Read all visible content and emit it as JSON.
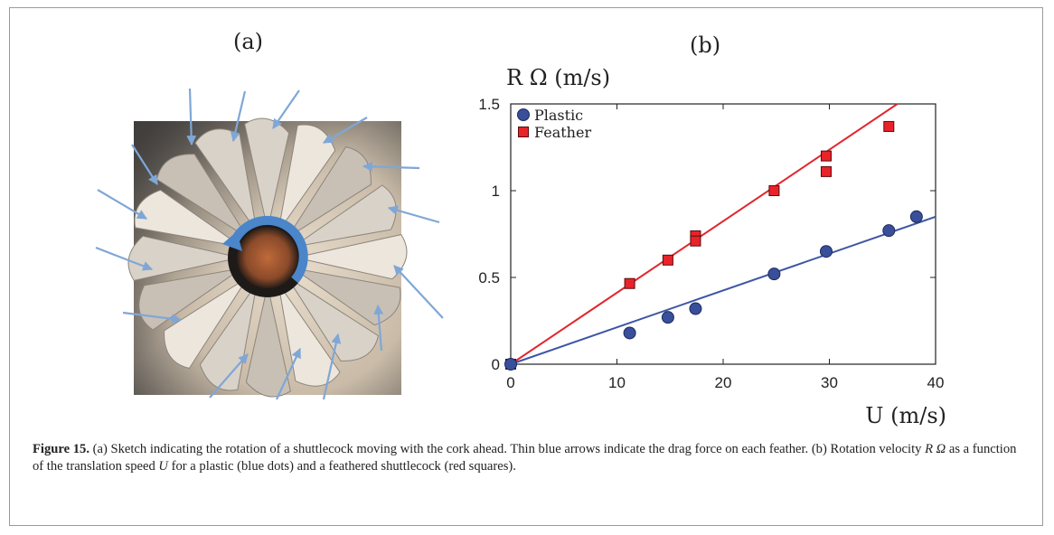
{
  "figure": {
    "panel_a_label": "(a)",
    "panel_b_label": "(b)",
    "caption": {
      "label": "Figure 15.",
      "part1": " (a) Sketch indicating the rotation of a shuttlecock moving with the cork ahead. Thin blue arrows indicate the drag force on each feather. (b) Rotation velocity ",
      "symbol_r_omega": "R Ω",
      "part2": " as a function of the translation speed ",
      "symbol_u": "U",
      "part3": " for a plastic (blue dots) and a feathered shuttlecock (red squares)."
    }
  },
  "colors": {
    "plastic": "#3a4f9a",
    "plastic_line": "#3d55a5",
    "feather": "#e8242a",
    "feather_line": "#e2252b",
    "arrow": "#7fa7d6",
    "rotation_arrow": "#4a86c9"
  },
  "chart_data": {
    "type": "scatter",
    "ylabel": "R Ω (m/s)",
    "xlabel": "U (m/s)",
    "xlim": [
      0,
      40
    ],
    "ylim": [
      0,
      1.5
    ],
    "xticks": [
      0,
      10,
      20,
      30,
      40
    ],
    "xtick_labels": [
      "0",
      "10",
      "20",
      "30",
      "40"
    ],
    "yticks": [
      0,
      0.5,
      1,
      1.5
    ],
    "ytick_labels": [
      "0",
      "0.5",
      "1",
      "1.5"
    ],
    "grid": false,
    "legend_position": "top-left",
    "series": [
      {
        "name": "Plastic",
        "marker": "circle",
        "points": [
          [
            0,
            0
          ],
          [
            11.2,
            0.18
          ],
          [
            14.8,
            0.27
          ],
          [
            17.4,
            0.32
          ],
          [
            24.8,
            0.52
          ],
          [
            29.7,
            0.65
          ],
          [
            35.6,
            0.77
          ],
          [
            38.2,
            0.85
          ]
        ],
        "fit": [
          [
            0,
            0
          ],
          [
            40,
            0.85
          ]
        ]
      },
      {
        "name": "Feather",
        "marker": "square",
        "points": [
          [
            0,
            0
          ],
          [
            11.2,
            0.465
          ],
          [
            14.8,
            0.6
          ],
          [
            17.4,
            0.74
          ],
          [
            17.4,
            0.71
          ],
          [
            24.8,
            1.0
          ],
          [
            29.7,
            1.2
          ],
          [
            29.7,
            1.11
          ],
          [
            35.6,
            1.37
          ]
        ],
        "fit": [
          [
            0,
            0
          ],
          [
            36.4,
            1.5
          ]
        ]
      }
    ]
  }
}
